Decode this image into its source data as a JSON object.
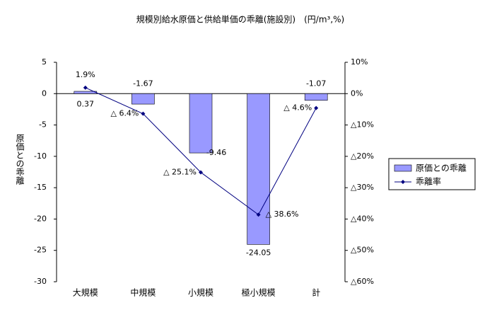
{
  "chart_data": {
    "type": "bar-line",
    "title": "規模別給水原価と供給単価の乖離(施設別)　(円/m³,%)",
    "y_label": "原価との乖離",
    "categories": [
      "大規模",
      "中規模",
      "小規模",
      "極小規模",
      "計"
    ],
    "series": [
      {
        "name": "原価との乖離",
        "type": "bar",
        "color": "#9999ff",
        "values": [
          0.37,
          -1.67,
          -9.46,
          -24.05,
          -1.07
        ]
      },
      {
        "name": "乖離率",
        "type": "line",
        "axis": "y2",
        "color": "#000080",
        "values": [
          1.9,
          -6.4,
          -25.1,
          -38.6,
          -4.6
        ],
        "value_labels": [
          "1.9%",
          "△ 6.4%",
          "△ 25.1%",
          "△ 38.6%",
          "△ 4.6%"
        ]
      }
    ],
    "ylim": [
      -30,
      5
    ],
    "yticks": [
      -30,
      -25,
      -20,
      -15,
      -10,
      -5,
      0,
      5
    ],
    "y2lim": [
      -60,
      10
    ],
    "y2ticks": [
      {
        "value": -60,
        "label": "△60%"
      },
      {
        "value": -50,
        "label": "△50%"
      },
      {
        "value": -40,
        "label": "△40%"
      },
      {
        "value": -30,
        "label": "△30%"
      },
      {
        "value": -20,
        "label": "△20%"
      },
      {
        "value": -10,
        "label": "△10%"
      },
      {
        "value": 0,
        "label": "0%"
      },
      {
        "value": 10,
        "label": "10%"
      }
    ]
  }
}
